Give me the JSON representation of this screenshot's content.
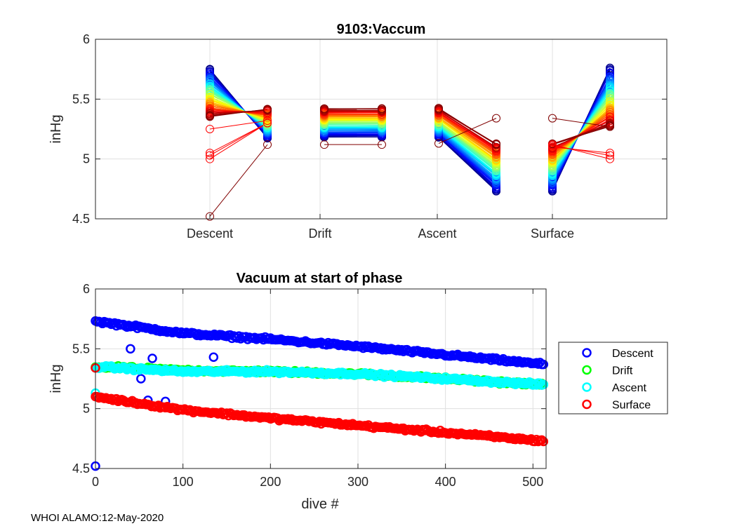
{
  "footer": "WHOI ALAMO:12-May-2020",
  "colors": {
    "descent": "#0000ff",
    "drift": "#00ff00",
    "ascent": "#00ffff",
    "surface": "#ff0000",
    "grid": "#e0e0e0",
    "axis": "#262626"
  },
  "chart_data": [
    {
      "type": "line",
      "title": "9103:Vaccum",
      "xlabel": "",
      "ylabel": "inHg",
      "ylim": [
        4.5,
        6
      ],
      "yticks": [
        4.5,
        5,
        5.5,
        6
      ],
      "yticklabels": [
        "4.5",
        "5",
        "5.5",
        "6"
      ],
      "categories": [
        "Descent",
        "Drift",
        "Ascent",
        "Surface"
      ],
      "description_segments": "Each dive draws 4 connected pairs: start/end of each phase; colors run blue (early dives) to dark red (late dives)",
      "series_summary": {
        "descent_start": {
          "range": [
            5.35,
            5.75
          ],
          "outliers": [
            4.52,
            5.0,
            5.05,
            5.25
          ]
        },
        "descent_end": {
          "range": [
            5.17,
            5.42
          ],
          "outliers": [
            5.12
          ]
        },
        "drift_start": {
          "range": [
            5.18,
            5.42
          ],
          "outliers": [
            5.12
          ]
        },
        "drift_end": {
          "range": [
            5.18,
            5.42
          ],
          "outliers": [
            5.12
          ]
        },
        "ascent_start": {
          "range": [
            5.18,
            5.42
          ],
          "outliers": [
            5.13
          ]
        },
        "ascent_end": {
          "range": [
            4.73,
            5.13
          ],
          "outliers": [
            5.34
          ]
        },
        "surface_start": {
          "range": [
            4.73,
            5.13
          ],
          "outliers": [
            5.34
          ]
        },
        "surface_end": {
          "range": [
            5.27,
            5.76
          ],
          "outliers": [
            5.0,
            5.05
          ]
        }
      }
    },
    {
      "type": "scatter",
      "title": "Vacuum at start of phase",
      "xlabel": "dive #",
      "ylabel": "inHg",
      "xlim": [
        0,
        515
      ],
      "ylim": [
        4.5,
        6
      ],
      "xticks": [
        0,
        100,
        200,
        300,
        400,
        500
      ],
      "xticklabels": [
        "0",
        "100",
        "200",
        "300",
        "400",
        "500"
      ],
      "yticks": [
        4.5,
        5,
        5.5,
        6
      ],
      "yticklabels": [
        "4.5",
        "5",
        "5.5",
        "6"
      ],
      "series": [
        {
          "name": "Descent",
          "trend": {
            "x": [
              0,
              100,
              200,
              300,
              400,
              512
            ],
            "y": [
              5.73,
              5.63,
              5.58,
              5.52,
              5.45,
              5.37
            ]
          },
          "outliers": [
            [
              0,
              4.52
            ],
            [
              52,
              5.25
            ],
            [
              60,
              5.07
            ],
            [
              80,
              5.06
            ],
            [
              40,
              5.5
            ],
            [
              65,
              5.42
            ],
            [
              135,
              5.43
            ]
          ]
        },
        {
          "name": "Drift",
          "trend": {
            "x": [
              0,
              100,
              200,
              300,
              400,
              512
            ],
            "y": [
              5.35,
              5.32,
              5.31,
              5.29,
              5.25,
              5.2
            ]
          },
          "outliers": []
        },
        {
          "name": "Ascent",
          "trend": {
            "x": [
              0,
              100,
              200,
              300,
              400,
              512
            ],
            "y": [
              5.35,
              5.31,
              5.31,
              5.29,
              5.25,
              5.2
            ]
          },
          "outliers": [
            [
              0,
              5.13
            ]
          ]
        },
        {
          "name": "Surface",
          "trend": {
            "x": [
              0,
              100,
              200,
              300,
              400,
              512
            ],
            "y": [
              5.1,
              4.99,
              4.92,
              4.86,
              4.8,
              4.73
            ]
          },
          "outliers": [
            [
              0,
              5.34
            ]
          ]
        }
      ],
      "legend": [
        "Descent",
        "Drift",
        "Ascent",
        "Surface"
      ],
      "legend_position": "outside-right"
    }
  ]
}
